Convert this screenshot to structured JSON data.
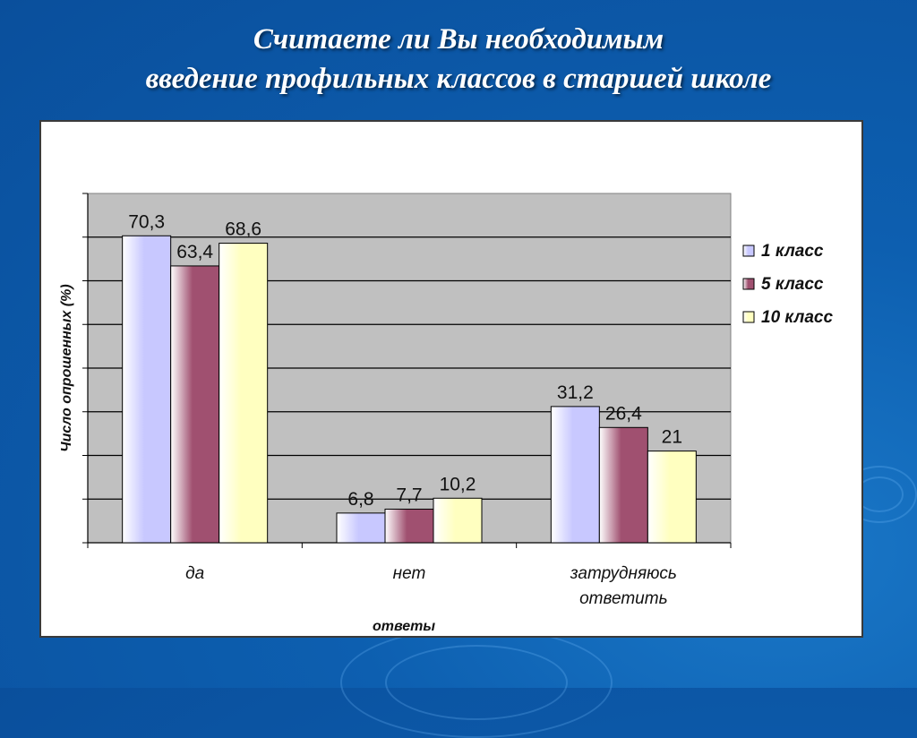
{
  "slide": {
    "title_line1": "Считаете ли Вы необходимым",
    "title_line2": "введение профильных классов в старшей школе"
  },
  "chart_data": {
    "type": "bar",
    "categories": [
      [
        "да"
      ],
      [
        "нет"
      ],
      [
        "затрудняюсь",
        "ответить"
      ]
    ],
    "series": [
      {
        "name": "1 класс",
        "values": [
          70.3,
          6.8,
          31.2
        ],
        "labels": [
          "70,3",
          "6,8",
          "31,2"
        ],
        "color": "#c8c8ff"
      },
      {
        "name": "5 класс",
        "values": [
          63.4,
          7.7,
          26.4
        ],
        "labels": [
          "63,4",
          "7,7",
          "26,4"
        ],
        "color": "#a05070"
      },
      {
        "name": "10 класс",
        "values": [
          68.6,
          10.2,
          21
        ],
        "labels": [
          "68,6",
          "10,2",
          "21"
        ],
        "color": "#ffffc0"
      }
    ],
    "xlabel": "ответы",
    "ylabel": "Число опрошенных (%)",
    "ylim": [
      0,
      80
    ],
    "grid": true,
    "legend_position": "right",
    "plot_background": "#c0c0c0"
  }
}
